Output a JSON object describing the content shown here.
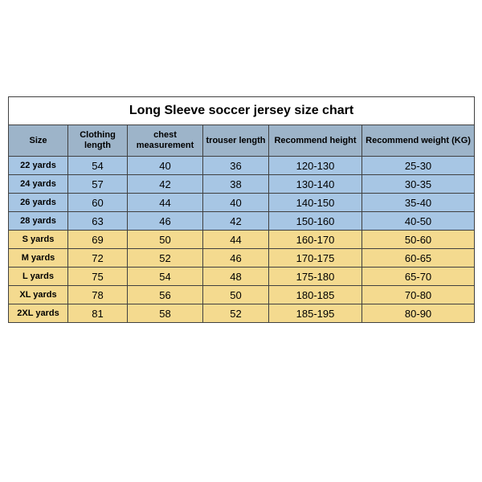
{
  "title": "Long Sleeve soccer jersey size chart",
  "colors": {
    "header_bg": "#9db4c9",
    "group_a_bg": "#a7c6e4",
    "group_b_bg": "#f4da8f",
    "border": "#404040",
    "title_bg": "#ffffff",
    "text": "#000000"
  },
  "columns": [
    {
      "key": "size",
      "label": "Size"
    },
    {
      "key": "clothing_length",
      "label": "Clothing length"
    },
    {
      "key": "chest",
      "label": "chest measurement"
    },
    {
      "key": "trouser_length",
      "label": "trouser length"
    },
    {
      "key": "rec_height",
      "label": "Recommend height"
    },
    {
      "key": "rec_weight",
      "label": "Recommend weight (KG)"
    }
  ],
  "rows": [
    {
      "group": "a",
      "size": "22 yards",
      "clothing_length": "54",
      "chest": "40",
      "trouser_length": "36",
      "rec_height": "120-130",
      "rec_weight": "25-30"
    },
    {
      "group": "a",
      "size": "24 yards",
      "clothing_length": "57",
      "chest": "42",
      "trouser_length": "38",
      "rec_height": "130-140",
      "rec_weight": "30-35"
    },
    {
      "group": "a",
      "size": "26 yards",
      "clothing_length": "60",
      "chest": "44",
      "trouser_length": "40",
      "rec_height": "140-150",
      "rec_weight": "35-40"
    },
    {
      "group": "a",
      "size": "28 yards",
      "clothing_length": "63",
      "chest": "46",
      "trouser_length": "42",
      "rec_height": "150-160",
      "rec_weight": "40-50"
    },
    {
      "group": "b",
      "size": "S yards",
      "clothing_length": "69",
      "chest": "50",
      "trouser_length": "44",
      "rec_height": "160-170",
      "rec_weight": "50-60"
    },
    {
      "group": "b",
      "size": "M yards",
      "clothing_length": "72",
      "chest": "52",
      "trouser_length": "46",
      "rec_height": "170-175",
      "rec_weight": "60-65"
    },
    {
      "group": "b",
      "size": "L yards",
      "clothing_length": "75",
      "chest": "54",
      "trouser_length": "48",
      "rec_height": "175-180",
      "rec_weight": "65-70"
    },
    {
      "group": "b",
      "size": "XL yards",
      "clothing_length": "78",
      "chest": "56",
      "trouser_length": "50",
      "rec_height": "180-185",
      "rec_weight": "70-80"
    },
    {
      "group": "b",
      "size": "2XL yards",
      "clothing_length": "81",
      "chest": "58",
      "trouser_length": "52",
      "rec_height": "185-195",
      "rec_weight": "80-90"
    }
  ]
}
